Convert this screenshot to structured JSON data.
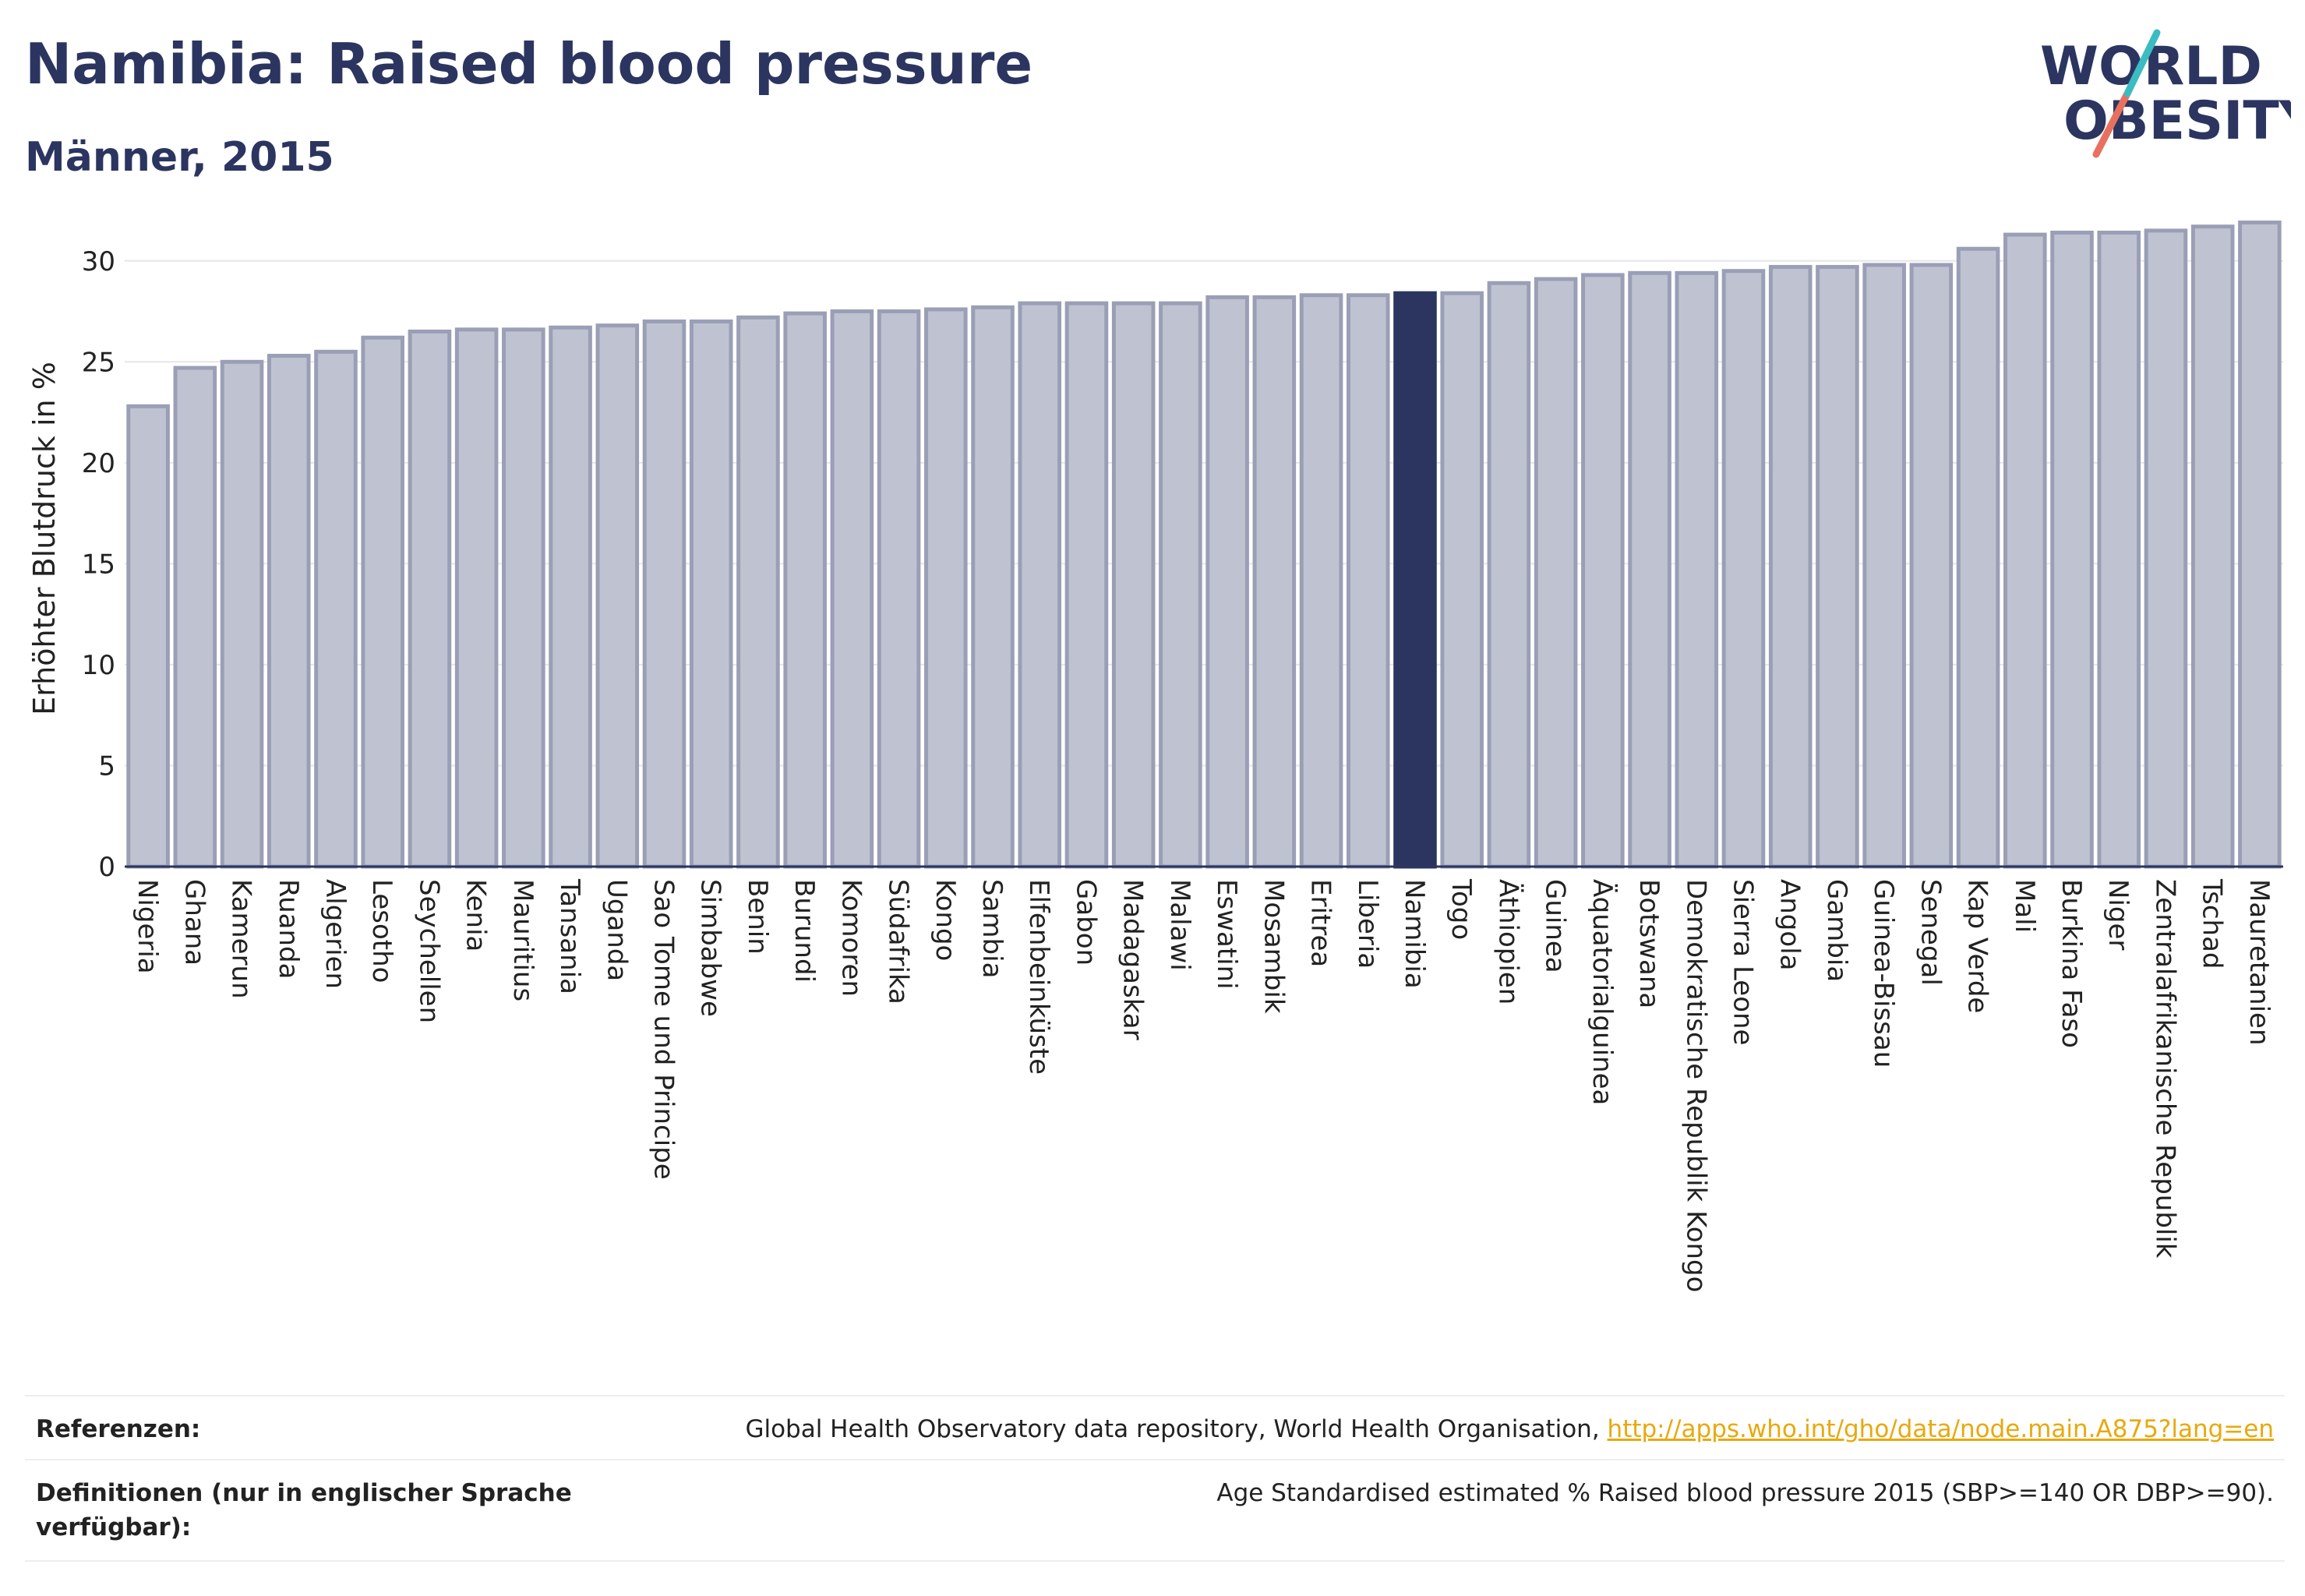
{
  "header": {
    "title": "Namibia: Raised blood pressure",
    "subtitle": "Männer, 2015"
  },
  "logo": {
    "line1": "WORLD",
    "line2": "OBESITY"
  },
  "colors": {
    "bar": "#bfc3d1",
    "bar_border": "#9a9fb6",
    "highlight": "#2b3560",
    "grid": "#e6e6ea",
    "logo_text": "#2b3560",
    "logo_teal": "#3bbcc0",
    "logo_red": "#e8705f",
    "link": "#e8a90e"
  },
  "chart_data": {
    "type": "bar",
    "ylabel": "Erhöhter Blutdruck in %",
    "ylim": [
      0,
      32.5
    ],
    "yticks": [
      0,
      5,
      10,
      15,
      20,
      25,
      30
    ],
    "grid": true,
    "highlight": "Namibia",
    "categories": [
      "Nigeria",
      "Ghana",
      "Kamerun",
      "Ruanda",
      "Algerien",
      "Lesotho",
      "Seychellen",
      "Kenia",
      "Mauritius",
      "Tansania",
      "Uganda",
      "Sao Tome und Principe",
      "Simbabwe",
      "Benin",
      "Burundi",
      "Komoren",
      "Südafrika",
      "Kongo",
      "Sambia",
      "Elfenbeinküste",
      "Gabon",
      "Madagaskar",
      "Malawi",
      "Eswatini",
      "Mosambik",
      "Eritrea",
      "Liberia",
      "Namibia",
      "Togo",
      "Äthiopien",
      "Guinea",
      "Äquatorialguinea",
      "Botswana",
      "Demokratische Republik Kongo",
      "Sierra Leone",
      "Angola",
      "Gambia",
      "Guinea-Bissau",
      "Senegal",
      "Kap Verde",
      "Mali",
      "Burkina Faso",
      "Niger",
      "Zentralafrikanische Republik",
      "Tschad",
      "Mauretanien"
    ],
    "values": [
      22.8,
      24.7,
      25.0,
      25.3,
      25.5,
      26.2,
      26.5,
      26.6,
      26.6,
      26.7,
      26.8,
      27.0,
      27.0,
      27.2,
      27.4,
      27.5,
      27.5,
      27.6,
      27.7,
      27.9,
      27.9,
      27.9,
      27.9,
      28.2,
      28.2,
      28.3,
      28.3,
      28.4,
      28.4,
      28.9,
      29.1,
      29.3,
      29.4,
      29.4,
      29.5,
      29.7,
      29.7,
      29.8,
      29.8,
      30.6,
      31.3,
      31.4,
      31.4,
      31.5,
      31.7,
      31.9
    ]
  },
  "footer": {
    "references_label": "Referenzen:",
    "references_text": "Global Health Observatory data repository, World Health Organisation, ",
    "references_link": "http://apps.who.int/gho/data/node.main.A875?lang=en",
    "definitions_label": "Definitionen (nur in englischer Sprache verfügbar):",
    "definitions_text": "Age Standardised estimated % Raised blood pressure 2015 (SBP>=140 OR DBP>=90)."
  }
}
